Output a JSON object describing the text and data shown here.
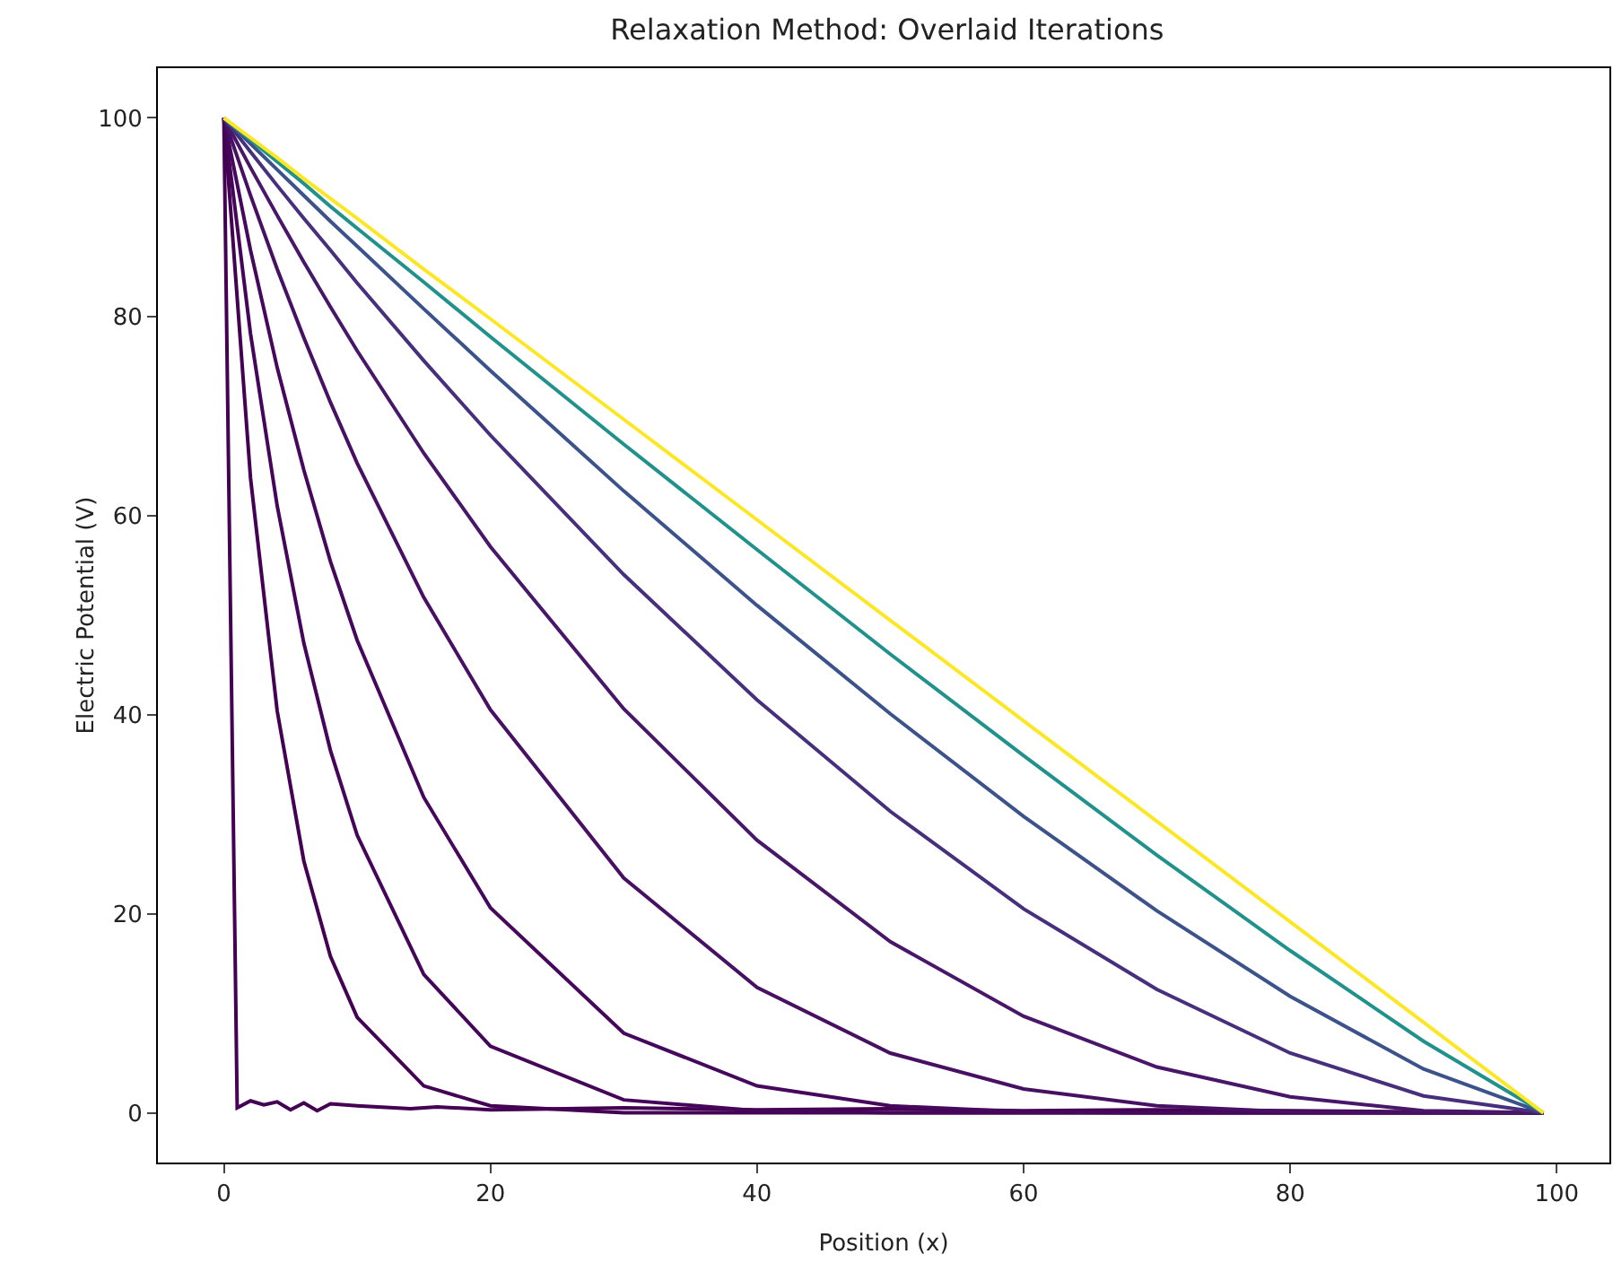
{
  "chart_data": {
    "type": "line",
    "title": "Relaxation Method: Overlaid Iterations",
    "xlabel": "Position (x)",
    "ylabel": "Electric Potential (V)",
    "x": [
      0,
      2,
      4,
      6,
      8,
      10,
      15,
      20,
      30,
      40,
      50,
      60,
      70,
      80,
      90,
      99
    ],
    "xlim": [
      -4.95,
      103.95
    ],
    "xticks": [
      0,
      20,
      40,
      60,
      80,
      100
    ],
    "ylim": [
      -5,
      105
    ],
    "yticks": [
      0,
      20,
      40,
      60,
      80,
      100
    ],
    "grid": false,
    "marker": "none",
    "line_style": "solid",
    "series": [
      {
        "color": "#440154",
        "x": [
          0,
          1,
          2,
          3,
          4,
          5,
          6,
          7,
          8,
          10,
          14,
          16,
          20,
          30,
          40,
          50,
          60,
          70,
          80,
          90,
          99
        ],
        "values": [
          100,
          0.5,
          1.2,
          0.8,
          1.1,
          0.3,
          1.0,
          0.2,
          0.9,
          0.7,
          0.4,
          0.6,
          0.3,
          0.5,
          0.3,
          0.4,
          0.2,
          0.3,
          0.2,
          0.1,
          0
        ]
      },
      {
        "color": "#440154",
        "values": [
          100,
          63.8,
          40.4,
          25.3,
          15.7,
          9.6,
          2.7,
          0.7,
          0,
          0,
          0,
          0,
          0,
          0,
          0,
          0
        ]
      },
      {
        "color": "#450559",
        "values": [
          100,
          78.3,
          61.0,
          47.2,
          36.4,
          27.9,
          13.9,
          6.7,
          1.3,
          0.2,
          0,
          0,
          0,
          0,
          0,
          0
        ]
      },
      {
        "color": "#46085c",
        "values": [
          100,
          86.7,
          74.9,
          64.6,
          55.4,
          47.5,
          31.7,
          20.6,
          8.0,
          2.7,
          0.7,
          0.1,
          0,
          0,
          0,
          0
        ]
      },
      {
        "color": "#471063",
        "values": [
          100,
          92.2,
          84.8,
          77.9,
          71.4,
          65.3,
          51.8,
          40.5,
          23.6,
          12.6,
          6.0,
          2.4,
          0.7,
          0.1,
          0,
          0
        ]
      },
      {
        "color": "#481769",
        "values": [
          100,
          95.0,
          90.2,
          85.5,
          81.0,
          76.6,
          66.3,
          56.9,
          40.6,
          27.4,
          17.2,
          9.7,
          4.6,
          1.6,
          0.2,
          0
        ]
      },
      {
        "color": "#472f7d",
        "values": [
          100,
          96.6,
          93.2,
          89.9,
          86.7,
          83.4,
          75.6,
          68.1,
          54.1,
          41.5,
          30.3,
          20.5,
          12.4,
          6.0,
          1.7,
          0
        ]
      },
      {
        "color": "#3b528b",
        "values": [
          100,
          97.4,
          94.8,
          92.2,
          89.6,
          87.1,
          80.8,
          74.6,
          62.5,
          51.0,
          40.1,
          29.8,
          20.3,
          11.7,
          4.4,
          0
        ]
      },
      {
        "color": "#21918c",
        "values": [
          100,
          97.8,
          95.6,
          93.4,
          91.1,
          88.9,
          83.5,
          78.0,
          67.2,
          56.6,
          46.1,
          35.9,
          25.9,
          16.3,
          7.2,
          0
        ]
      },
      {
        "color": "#fde725",
        "values": [
          100,
          98.0,
          96.0,
          93.9,
          91.9,
          89.9,
          84.8,
          79.8,
          69.7,
          59.6,
          49.5,
          39.4,
          29.3,
          19.2,
          9.1,
          0
        ]
      }
    ]
  }
}
